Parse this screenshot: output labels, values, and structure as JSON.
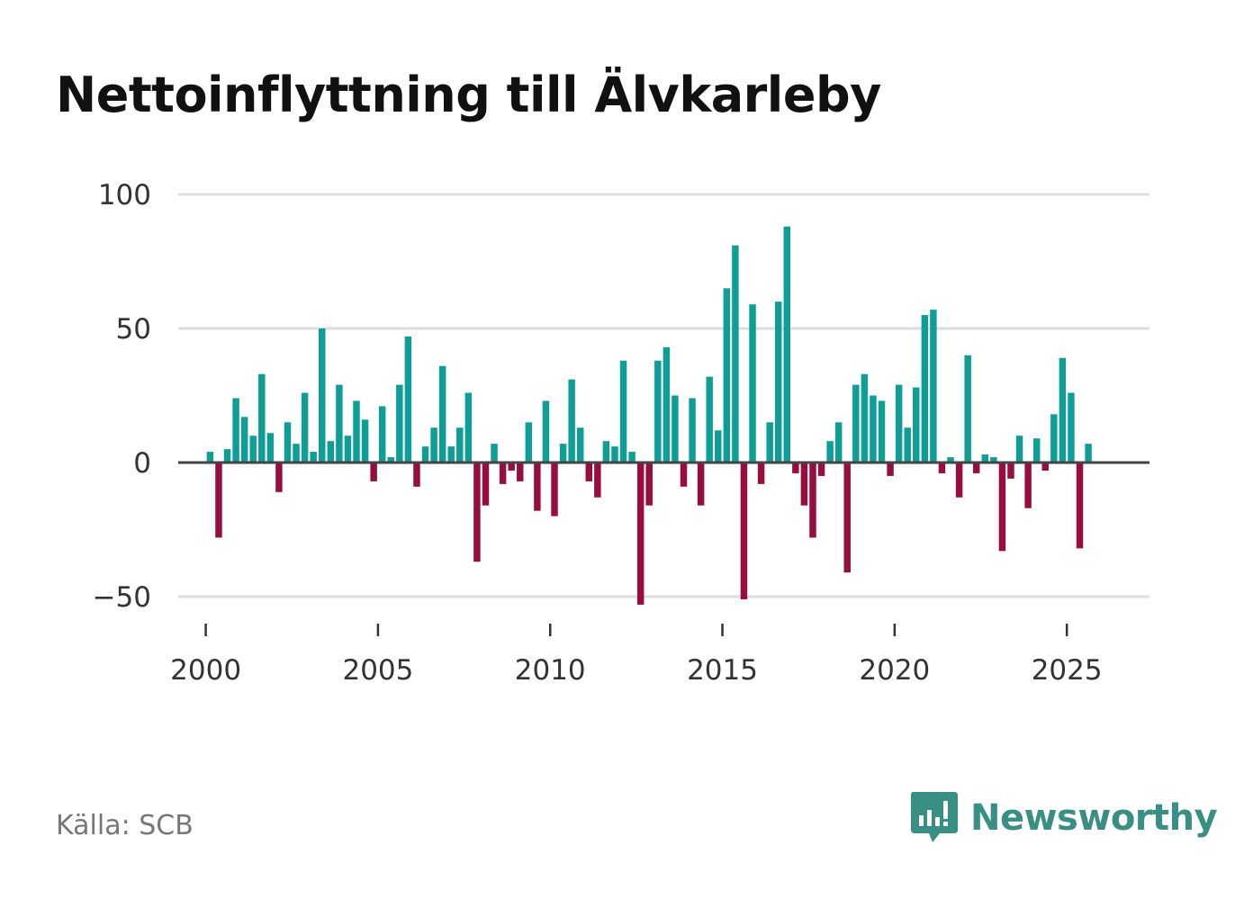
{
  "title": "Nettoinflyttning till Älvkarleby",
  "source": "Källa: SCB",
  "brand": {
    "name": "Newsworthy",
    "icon": "newsworthy-logo-icon"
  },
  "colors": {
    "positive": "#0f9e96",
    "negative": "#960d3e",
    "grid": "#dddddd",
    "baseline": "#444444",
    "brand": "#3a8f85"
  },
  "chart_data": {
    "type": "bar",
    "title": "Nettoinflyttning till Älvkarleby",
    "xlabel": "",
    "ylabel": "",
    "ylim": [
      -55,
      100
    ],
    "yticks": [
      100,
      50,
      0,
      -50
    ],
    "ytick_labels": [
      "100",
      "50",
      "0",
      "−50"
    ],
    "xticks": [
      2000,
      2005,
      2010,
      2015,
      2020,
      2025
    ],
    "xlim": [
      1999.2,
      2027.4
    ],
    "start_year": 2000,
    "start_quarter": 1,
    "frequency": "quarterly",
    "values": [
      4,
      -28,
      5,
      24,
      17,
      10,
      33,
      11,
      -11,
      15,
      7,
      26,
      4,
      50,
      8,
      29,
      10,
      23,
      16,
      -7,
      21,
      2,
      29,
      47,
      -9,
      6,
      13,
      36,
      6,
      13,
      26,
      -37,
      -16,
      7,
      -8,
      -3,
      -7,
      15,
      -18,
      23,
      -20,
      7,
      31,
      13,
      -7,
      -13,
      8,
      6,
      38,
      4,
      -53,
      -16,
      38,
      43,
      25,
      -9,
      24,
      -16,
      32,
      12,
      65,
      81,
      -51,
      59,
      -8,
      15,
      60,
      88,
      -4,
      -16,
      -28,
      -5,
      8,
      15,
      -41,
      29,
      33,
      25,
      23,
      -5,
      29,
      13,
      28,
      55,
      57,
      -4,
      2,
      -13,
      40,
      -4,
      3,
      2,
      -33,
      -6,
      10,
      -17,
      9,
      -3,
      18,
      39,
      26,
      -32,
      7
    ]
  }
}
